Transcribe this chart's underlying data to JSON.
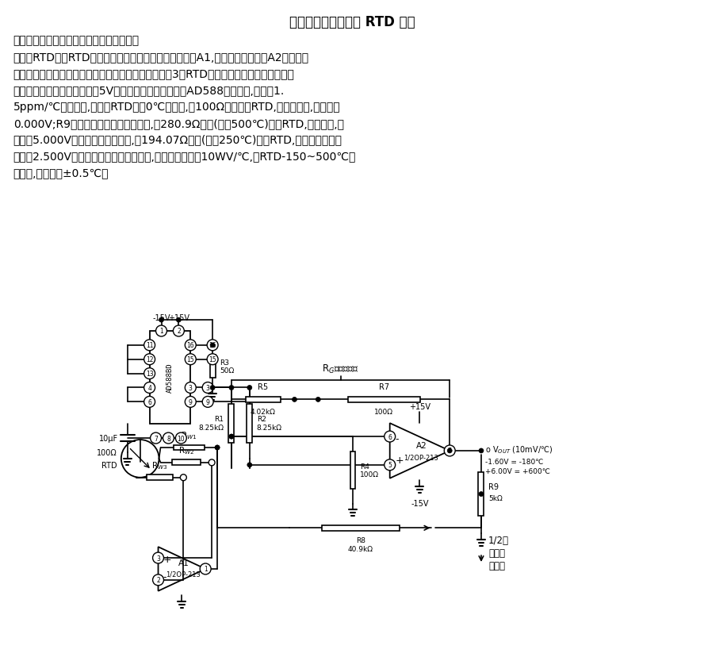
{
  "title_line1": "电路为超高精度线性 RTD 传感",
  "para1": "器温度计放大电路。电路通过反馈小量输出",
  "para2": "信号至RTD，使RTD桥线性化。图中桥的左臂驱动放大器A1,桥的右臂同样驱动A2放大器零",
  "para3": "压，这样就消除了放大器共模电压变化所产生的误差。3线RTD用于平衡桥双臂导线电阻，这",
  "para4": "样可减小温度失配误差。驱动5V激励电压来自非常稳定的AD588基准器件,温漂为1.",
  "para5": "5ppm/℃。校准时,首先将RTD插入0℃的冰中,用100Ω电阻代曽RTD,调零电位器,供输出为",
  "para6": "0.000V;R9线性调节电位器放中间位置,用280.9Ω电阻(等于500℃)代曽RTD,调满量程,供",
  "para7": "电压为5.000V。非线性输出校准时,用194.07Ω电阻(等于250℃)代曽RTD,调线性电位器供",
  "para8": "输出为2.500V。调满量程和半量程再校准,供放大器输出为10WV/℃,在RTD-150~500℃测",
  "para9": "量范围,精度优于±0.5℃。",
  "bg_color": "#ffffff",
  "text_color": "#000000",
  "circuit_color": "#000000"
}
